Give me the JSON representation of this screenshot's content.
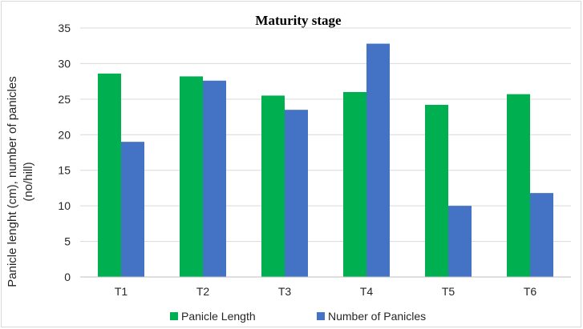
{
  "chart_data": {
    "type": "bar",
    "title": "Maturity stage",
    "ylabel_lines": [
      "Panicle lenght (cm), number of panicles",
      "(no/hill)"
    ],
    "xlabel": "",
    "categories": [
      "T1",
      "T2",
      "T3",
      "T4",
      "T5",
      "T6"
    ],
    "series": [
      {
        "name": "Panicle Length",
        "color": "#00b050",
        "values": [
          28.6,
          28.2,
          25.5,
          26.0,
          24.2,
          25.7
        ]
      },
      {
        "name": "Number of Panicles",
        "color": "#4472c4",
        "values": [
          19.0,
          27.6,
          23.5,
          32.8,
          10.0,
          11.8
        ]
      }
    ],
    "ylim": [
      0,
      35
    ],
    "yticks": [
      0,
      5,
      10,
      15,
      20,
      25,
      30,
      35
    ],
    "grid": true,
    "legend": "bottom"
  }
}
